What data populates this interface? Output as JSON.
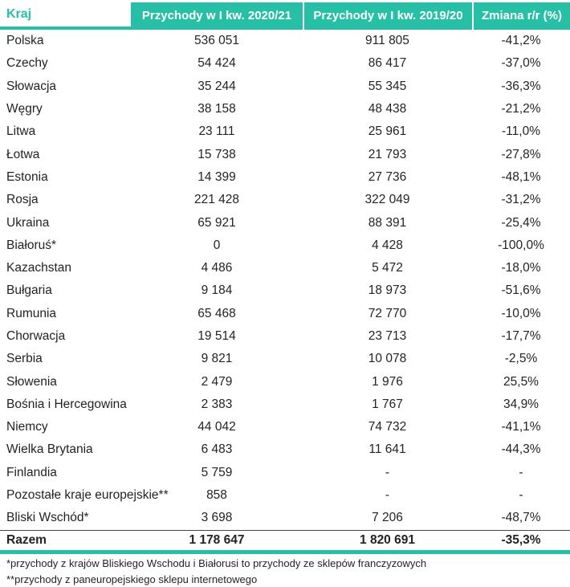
{
  "colors": {
    "accent_teal": "#27bfa5",
    "header_text": "#ffffff",
    "body_text": "#232323"
  },
  "chart_data": {
    "type": "table",
    "title": "",
    "columns": [
      "Kraj",
      "Przychody w I kw. 2020/21",
      "Przychody w I kw. 2019/20",
      "Zmiana r/r (%)"
    ],
    "rows": [
      [
        "Polska",
        "536 051",
        "911 805",
        "-41,2%"
      ],
      [
        "Czechy",
        "54 424",
        "86 417",
        "-37,0%"
      ],
      [
        "Słowacja",
        "35 244",
        "55 345",
        "-36,3%"
      ],
      [
        "Węgry",
        "38 158",
        "48 438",
        "-21,2%"
      ],
      [
        "Litwa",
        "23 111",
        "25 961",
        "-11,0%"
      ],
      [
        "Łotwa",
        "15 738",
        "21 793",
        "-27,8%"
      ],
      [
        "Estonia",
        "14 399",
        "27 736",
        "-48,1%"
      ],
      [
        "Rosja",
        "221 428",
        "322 049",
        "-31,2%"
      ],
      [
        "Ukraina",
        "65 921",
        "88 391",
        "-25,4%"
      ],
      [
        "Białoruś*",
        "0",
        "4 428",
        "-100,0%"
      ],
      [
        "Kazachstan",
        "4 486",
        "5 472",
        "-18,0%"
      ],
      [
        "Bułgaria",
        "9 184",
        "18 973",
        "-51,6%"
      ],
      [
        "Rumunia",
        "65 468",
        "72 770",
        "-10,0%"
      ],
      [
        "Chorwacja",
        "19 514",
        "23 713",
        "-17,7%"
      ],
      [
        "Serbia",
        "9 821",
        "10 078",
        "-2,5%"
      ],
      [
        "Słowenia",
        "2 479",
        "1 976",
        "25,5%"
      ],
      [
        "Bośnia i Hercegowina",
        "2 383",
        "1 767",
        "34,9%"
      ],
      [
        "Niemcy",
        "44 042",
        "74 732",
        "-41,1%"
      ],
      [
        "Wielka Brytania",
        "6 483",
        "11 641",
        "-44,3%"
      ],
      [
        "Finlandia",
        "5 759",
        "-",
        "-"
      ],
      [
        "Pozostałe kraje europejskie**",
        "858",
        "-",
        "-"
      ],
      [
        "Bliski Wschód*",
        "3 698",
        "7 206",
        "-48,7%"
      ]
    ],
    "total": [
      "Razem",
      "1 178 647",
      "1 820 691",
      "-35,3%"
    ],
    "footnotes": [
      "*przychody z krajów Bliskiego Wschodu i Białorusi to przychody ze sklepów franczyzowych",
      "**przychody z paneuropejskiego sklepu internetowego"
    ]
  }
}
